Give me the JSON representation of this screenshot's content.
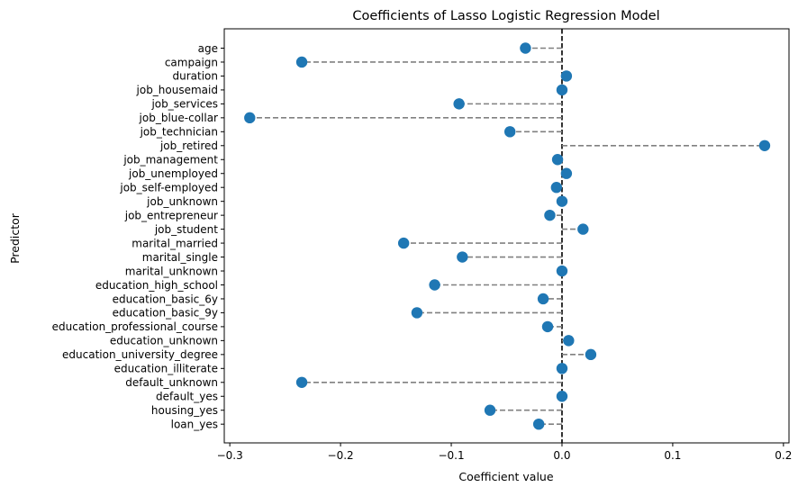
{
  "chart_data": {
    "type": "lollipop",
    "title": "Coefficients of Lasso Logistic Regression Model",
    "xlabel": "Coefficient value",
    "ylabel": "Predictor",
    "xlim": [
      -0.305,
      0.205
    ],
    "xticks": [
      -0.3,
      -0.2,
      -0.1,
      0.0,
      0.1,
      0.2
    ],
    "xtick_labels": [
      "−0.3",
      "−0.2",
      "−0.1",
      "0.0",
      "0.1",
      "0.2"
    ],
    "reference_line_x": 0,
    "grid": false,
    "colors": {
      "marker": "#1f77b4",
      "stem": "#808080",
      "zero_line": "#000000"
    },
    "categories": [
      "age",
      "campaign",
      "duration",
      "job_housemaid",
      "job_services",
      "job_blue-collar",
      "job_technician",
      "job_retired",
      "job_management",
      "job_unemployed",
      "job_self-employed",
      "job_unknown",
      "job_entrepreneur",
      "job_student",
      "marital_married",
      "marital_single",
      "marital_unknown",
      "education_high_school",
      "education_basic_6y",
      "education_basic_9y",
      "education_professional_course",
      "education_unknown",
      "education_university_degree",
      "education_illiterate",
      "default_unknown",
      "default_yes",
      "housing_yes",
      "loan_yes"
    ],
    "values": [
      -0.033,
      -0.235,
      0.004,
      0.0,
      -0.093,
      -0.282,
      -0.047,
      0.183,
      -0.004,
      0.004,
      -0.005,
      0.0,
      -0.011,
      0.019,
      -0.143,
      -0.09,
      0.0,
      -0.115,
      -0.017,
      -0.131,
      -0.013,
      0.006,
      0.026,
      0.0,
      -0.235,
      0.0,
      -0.065,
      -0.021
    ]
  }
}
